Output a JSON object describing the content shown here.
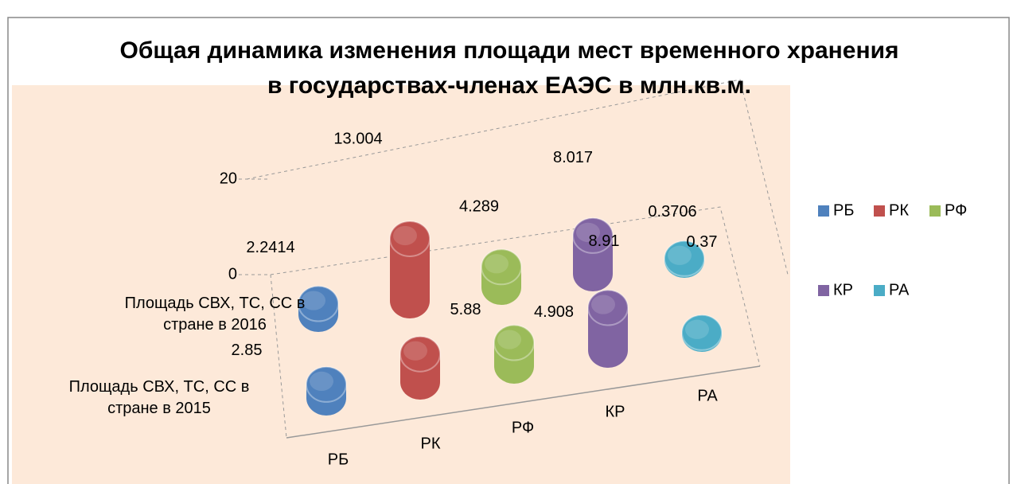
{
  "chart_data": {
    "type": "bar3d",
    "title": "Общая динамика изменения площади мест временного хранения в государствах-членах ЕАЭС в млн.кв.м.",
    "categories": [
      "Площадь СВХ, ТС, СС в стране в 2016",
      "Площадь СВХ, ТС, СС в стране в 2015"
    ],
    "series": [
      {
        "name": "РБ",
        "color": "#4f81bd",
        "values": [
          2.2414,
          2.85
        ]
      },
      {
        "name": "РК",
        "color": "#c0504d",
        "values": [
          13.004,
          5.88
        ]
      },
      {
        "name": "РФ",
        "color": "#9bbb59",
        "values": [
          4.289,
          4.908
        ]
      },
      {
        "name": "КР",
        "color": "#8064a2",
        "values": [
          8.017,
          8.91
        ]
      },
      {
        "name": "РА",
        "color": "#4bacc6",
        "values": [
          0.3706,
          0.37
        ]
      }
    ],
    "ylim": [
      0,
      20
    ],
    "yticks": [
      0,
      20
    ],
    "legend": "right"
  }
}
